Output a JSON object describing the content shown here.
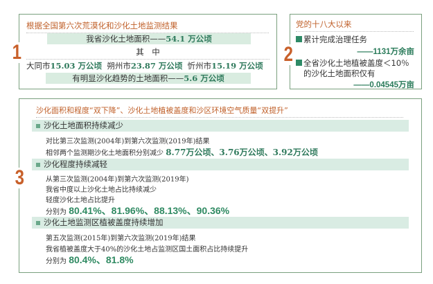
{
  "colors": {
    "accent": "#c0602a",
    "green": "#2f7a5c",
    "bar": "#d9ece0",
    "border": "#7aa07e"
  },
  "box1": {
    "num": "1",
    "title": "根据全国第六次荒漠化和沙化土地监测结果",
    "total_label": "我省沙化土地面积——",
    "total_value": "54.1 万公顷",
    "among": "其　中",
    "cities": [
      {
        "name": "大同市",
        "value": "15.03 万公顷"
      },
      {
        "name": "朔州市",
        "value": "23.87 万公顷"
      },
      {
        "name": "忻州市",
        "value": "15.19 万公顷"
      }
    ],
    "trend_label": "有明显沙化趋势的土地面积——",
    "trend_value": "5.6 万公顷"
  },
  "box2": {
    "num": "2",
    "title": "党的十八大以来",
    "item1": "累计完成治理任务",
    "value1": "——1131万余亩",
    "item2_l1": "全省沙化土地植被盖度＜10％",
    "item2_l2": "的沙化土地面积仅有",
    "value2": "——0.04545万亩"
  },
  "box3": {
    "num": "3",
    "title": "沙化面积和程度“双下降”、沙化土地植被盖度和沙区环境空气质量“双提升”",
    "sections": [
      {
        "heading": "沙化土地面积持续减少",
        "lines": [
          "对比第三次监测(2004年)到第六次监测(2019年)结果"
        ],
        "prefix": "相邻两个监测期沙化土地面积分别减少 ",
        "values": "8.77万公顷、3.76万公顷、3.92万公顷"
      },
      {
        "heading": "沙化程度持续减轻",
        "lines": [
          "从第三次监测(2004年)到第六次监测(2019年)",
          "我省中度以上沙化土地占比持续减少",
          "轻度沙化土地占比提升"
        ],
        "prefix": "分别为 ",
        "values": "80.41%、81.96%、88.13%、90.36%"
      },
      {
        "heading": "沙化土地监测区植被盖度持续增加",
        "lines": [
          "第五次监测(2015年)到第六次监测(2019年)结果",
          "我省植被盖度大于40%的沙化土地占监测区国土面积占比持续提升"
        ],
        "prefix": "分别为 ",
        "values": "80.4%、81.8%"
      }
    ]
  }
}
